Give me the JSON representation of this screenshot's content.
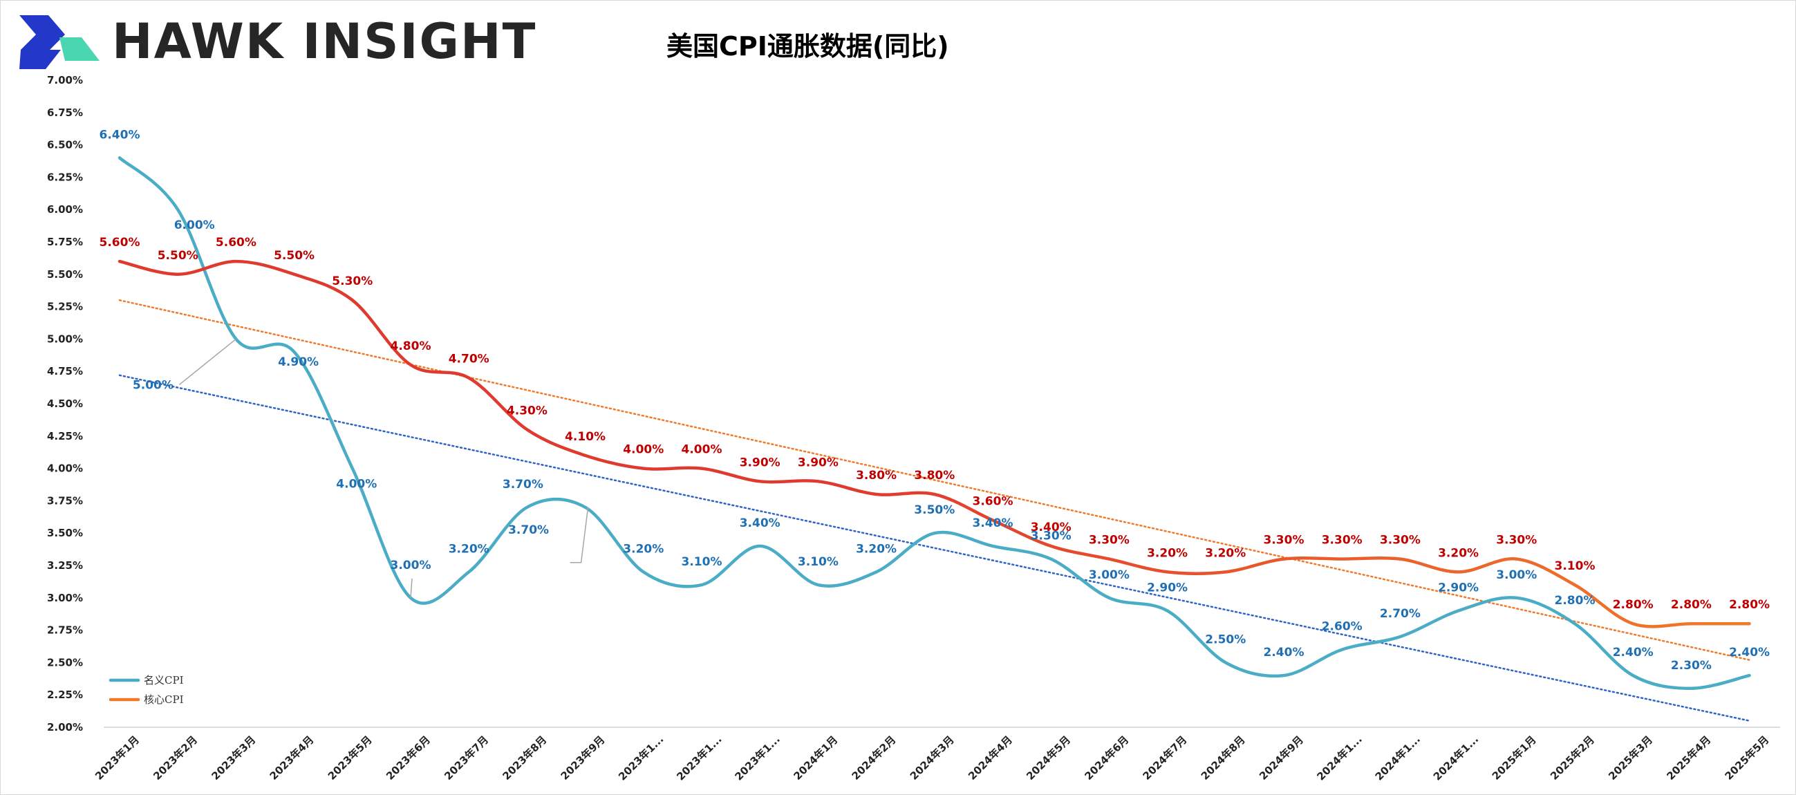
{
  "brand": {
    "name": "HAWK INSIGHT"
  },
  "chart_data": {
    "type": "line",
    "title": "美国CPI通胀数据(同比)",
    "xlabel": "",
    "ylabel": "",
    "ylim": [
      2.0,
      7.0
    ],
    "y_ticks": [
      "2.00%",
      "2.25%",
      "2.50%",
      "2.75%",
      "3.00%",
      "3.25%",
      "3.50%",
      "3.75%",
      "4.00%",
      "4.25%",
      "4.50%",
      "4.75%",
      "5.00%",
      "5.25%",
      "5.50%",
      "5.75%",
      "6.00%",
      "6.25%",
      "6.50%",
      "6.75%",
      "7.00%"
    ],
    "categories": [
      "2023年1月",
      "2023年2月",
      "2023年3月",
      "2023年4月",
      "2023年5月",
      "2023年6月",
      "2023年7月",
      "2023年8月",
      "2023年9月",
      "2023年1...",
      "2023年1...",
      "2023年1...",
      "2024年1月",
      "2024年2月",
      "2024年3月",
      "2024年4月",
      "2024年5月",
      "2024年6月",
      "2024年7月",
      "2024年8月",
      "2024年9月",
      "2024年1...",
      "2024年1...",
      "2024年1...",
      "2025年1月",
      "2025年2月",
      "2025年3月",
      "2025年4月",
      "2025年5月"
    ],
    "series": [
      {
        "name": "名义CPI",
        "color": "#4bacc6",
        "label_color": "#1f6fb4",
        "values": [
          6.4,
          6.0,
          5.0,
          4.9,
          4.0,
          3.0,
          3.2,
          3.7,
          3.7,
          3.2,
          3.1,
          3.4,
          3.1,
          3.2,
          3.5,
          3.4,
          3.3,
          3.0,
          2.9,
          2.5,
          2.4,
          2.6,
          2.7,
          2.9,
          3.0,
          2.8,
          2.4,
          2.3,
          2.4
        ],
        "labels": [
          "6.40%",
          "6.00%",
          "5.00%",
          "4.90%",
          "4.00%",
          "3.00%",
          "3.20%",
          "3.70%",
          "3.70%",
          "3.20%",
          "3.10%",
          "3.40%",
          "3.10%",
          "3.20%",
          "3.50%",
          "3.40%",
          "3.30%",
          "3.00%",
          "2.90%",
          "2.50%",
          "2.40%",
          "2.60%",
          "2.70%",
          "2.90%",
          "3.00%",
          "2.80%",
          "2.40%",
          "2.30%",
          "2.40%"
        ]
      },
      {
        "name": "核心CPI",
        "color": "#e03a2f",
        "color_end": "#f07a2a",
        "label_color": "#c00000",
        "values": [
          5.6,
          5.5,
          5.6,
          5.5,
          5.3,
          4.8,
          4.7,
          4.3,
          4.1,
          4.0,
          4.0,
          3.9,
          3.9,
          3.8,
          3.8,
          3.6,
          3.4,
          3.3,
          3.2,
          3.2,
          3.3,
          3.3,
          3.3,
          3.2,
          3.3,
          3.1,
          2.8,
          2.8,
          2.8
        ],
        "labels": [
          "5.60%",
          "5.50%",
          "5.60%",
          "5.50%",
          "5.30%",
          "4.80%",
          "4.70%",
          "4.30%",
          "4.10%",
          "4.00%",
          "4.00%",
          "3.90%",
          "3.90%",
          "3.80%",
          "3.80%",
          "3.60%",
          "3.40%",
          "3.30%",
          "3.20%",
          "3.20%",
          "3.30%",
          "3.30%",
          "3.30%",
          "3.20%",
          "3.30%",
          "3.10%",
          "2.80%",
          "2.80%",
          "2.80%"
        ]
      }
    ],
    "trendlines": [
      {
        "of": "名义CPI",
        "color": "#2e63c7",
        "style": "dotted",
        "start": 4.72,
        "end": 2.05
      },
      {
        "of": "核心CPI",
        "color": "#f07a2a",
        "style": "dotted",
        "start": 5.3,
        "end": 2.52
      }
    ],
    "legend": {
      "position": "bottom-left"
    },
    "grid": false
  }
}
